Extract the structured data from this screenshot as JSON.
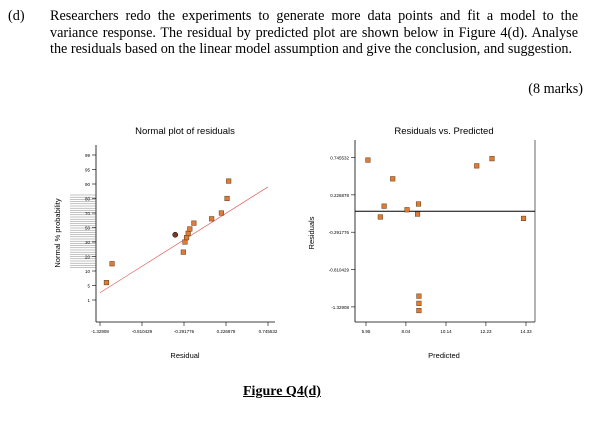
{
  "question": {
    "label": "(d)",
    "text": "Researchers redo the experiments to generate more data points and fit a model to the variance response. The residual by predicted plot are shown below in Figure 4(d). Analyse the residuals based on the linear model assumption and give the conclusion, and suggestion.",
    "marks": "(8 marks)"
  },
  "figure": {
    "caption": "Figure Q4(d)"
  },
  "chart_data": [
    {
      "type": "scatter",
      "title": "Normal plot of residuals",
      "xlabel": "Residual",
      "ylabel": "Normal % probability",
      "x_ticks": [
        "-1.32908",
        "-0.810429",
        "-0.291776",
        "0.226878",
        "0.745532"
      ],
      "x_tick_values": [
        -1.32908,
        -0.810429,
        -0.291776,
        0.226878,
        0.745532
      ],
      "y_ticks": [
        "99",
        "95",
        "90",
        "80",
        "70",
        "50",
        "30",
        "20",
        "10",
        "5",
        "1"
      ],
      "y_tick_values": [
        99,
        95,
        90,
        80,
        70,
        50,
        30,
        20,
        10,
        5,
        1
      ],
      "xlim": [
        -1.32908,
        0.745532
      ],
      "ylim": [
        1,
        99
      ],
      "points": [
        {
          "x": -1.25,
          "y": 6
        },
        {
          "x": -1.18,
          "y": 15
        },
        {
          "x": -0.3,
          "y": 23
        },
        {
          "x": -0.28,
          "y": 30
        },
        {
          "x": -0.26,
          "y": 36
        },
        {
          "x": -0.24,
          "y": 42
        },
        {
          "x": -0.22,
          "y": 48
        },
        {
          "x": -0.17,
          "y": 56
        },
        {
          "x": 0.05,
          "y": 62
        },
        {
          "x": 0.17,
          "y": 70
        },
        {
          "x": 0.24,
          "y": 80
        },
        {
          "x": 0.26,
          "y": 91
        }
      ],
      "highlight_point": {
        "x": -0.4,
        "y": 40
      },
      "fit_line": {
        "x": [
          -1.32908,
          0.745532
        ],
        "y": [
          3,
          88
        ]
      }
    },
    {
      "type": "scatter",
      "title": "Residuals vs. Predicted",
      "xlabel": "Predicted",
      "ylabel": "Residuals",
      "x_ticks": [
        "5.95",
        "8.04",
        "10.14",
        "12.23",
        "14.33"
      ],
      "x_tick_values": [
        5.95,
        8.04,
        10.14,
        12.23,
        14.33
      ],
      "y_ticks": [
        "0.745532",
        "0.226878",
        "-0.291776",
        "-0.810429",
        "-1.32908"
      ],
      "y_tick_values": [
        0.745532,
        0.226878,
        -0.291776,
        -0.810429,
        -1.32908
      ],
      "xlim": [
        5.95,
        14.33
      ],
      "ylim": [
        -1.4,
        0.85
      ],
      "zero_line": 0,
      "points": [
        {
          "x": 6.05,
          "y": 0.71
        },
        {
          "x": 6.7,
          "y": -0.08
        },
        {
          "x": 6.9,
          "y": 0.07
        },
        {
          "x": 7.35,
          "y": 0.45
        },
        {
          "x": 8.1,
          "y": 0.02
        },
        {
          "x": 8.65,
          "y": -0.04
        },
        {
          "x": 8.7,
          "y": 0.1
        },
        {
          "x": 8.72,
          "y": -1.18
        },
        {
          "x": 8.72,
          "y": -1.28
        },
        {
          "x": 8.72,
          "y": -1.38
        },
        {
          "x": 11.75,
          "y": 0.63
        },
        {
          "x": 12.55,
          "y": 0.73
        },
        {
          "x": 14.2,
          "y": -0.1
        }
      ]
    }
  ]
}
